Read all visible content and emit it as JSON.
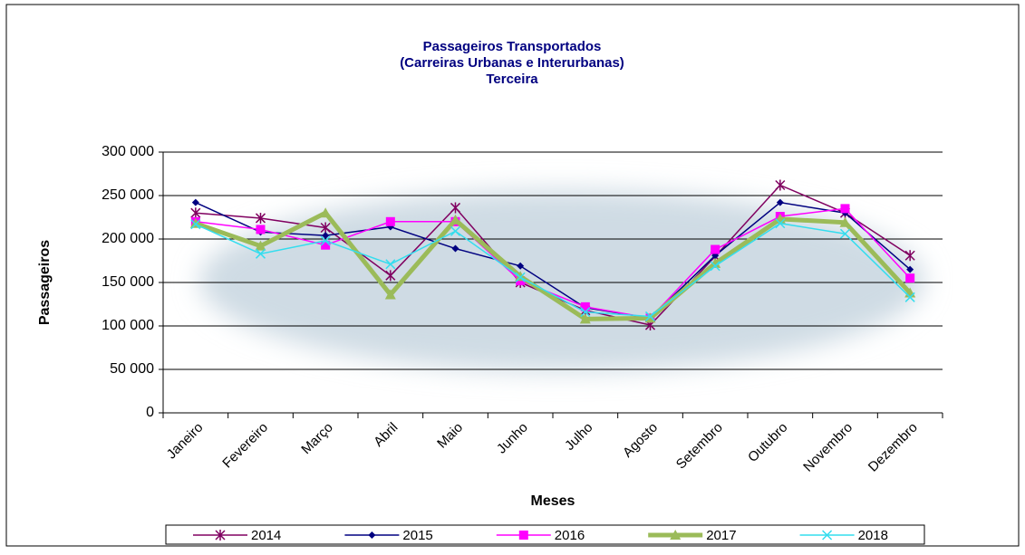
{
  "chart_data": {
    "type": "line",
    "title": [
      "Passageiros Transportados",
      "(Carreiras Urbanas e Interurbanas)",
      "Terceira"
    ],
    "x_label": "Meses",
    "y_label": "Passageiros",
    "categories": [
      "Janeiro",
      "Fevereiro",
      "Março",
      "Abril",
      "Maio",
      "Junho",
      "Julho",
      "Agosto",
      "Setembro",
      "Outubro",
      "Novembro",
      "Dezembro"
    ],
    "series": [
      {
        "name": "2014",
        "color": "#800060",
        "marker": "star",
        "line_width": 1.5,
        "values": [
          230000,
          224000,
          213000,
          158000,
          236000,
          150000,
          118000,
          101000,
          180000,
          262000,
          230000,
          181000
        ]
      },
      {
        "name": "2015",
        "color": "#000080",
        "marker": "diamond",
        "line_width": 1.5,
        "values": [
          242000,
          208000,
          204000,
          214000,
          189000,
          169000,
          121000,
          109000,
          181000,
          242000,
          230000,
          165000
        ]
      },
      {
        "name": "2016",
        "color": "#ff00ff",
        "marker": "square",
        "line_width": 1.5,
        "values": [
          220000,
          211000,
          193000,
          220000,
          220000,
          152000,
          122000,
          109000,
          188000,
          226000,
          235000,
          155000
        ]
      },
      {
        "name": "2017",
        "color": "#9bbb59",
        "marker": "triangle",
        "line_width": 5,
        "values": [
          218000,
          192000,
          230000,
          136000,
          222000,
          157000,
          108000,
          109000,
          172000,
          223000,
          219000,
          138000
        ]
      },
      {
        "name": "2018",
        "color": "#33ddee",
        "marker": "x",
        "line_width": 1.5,
        "values": [
          217000,
          183000,
          198000,
          171000,
          209000,
          156000,
          116000,
          111000,
          169000,
          218000,
          206000,
          133000
        ]
      }
    ],
    "ylim": [
      0,
      300000
    ],
    "yticks": [
      0,
      {
        "value": 50000,
        "label": "50 000"
      },
      {
        "value": 100000,
        "label": "100 000"
      },
      {
        "value": 150000,
        "label": "150 000"
      },
      {
        "value": 200000,
        "label": "200 000"
      },
      {
        "value": 250000,
        "label": "250 000"
      },
      {
        "value": 300000,
        "label": "300 000"
      }
    ],
    "grid": true,
    "legend": "bottom"
  }
}
